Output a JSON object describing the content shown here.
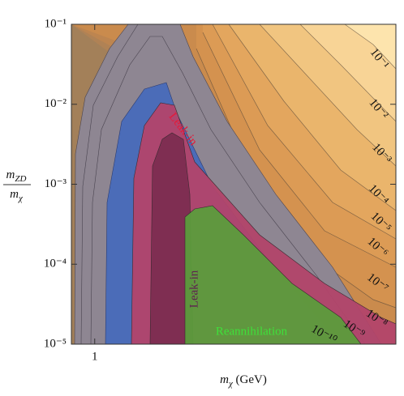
{
  "chart_data": {
    "type": "contour",
    "xlabel": {
      "symbol": "m",
      "sub": "χ",
      "unit": " (GeV)"
    },
    "ylabel": {
      "numerator": "m",
      "numerator_sub": "ZD",
      "denominator": "m",
      "denominator_sub": "χ"
    },
    "xscale": "log",
    "yscale": "log",
    "xlim": [
      0.7,
      100
    ],
    "ylim": [
      1e-05,
      0.1
    ],
    "xticks": [
      1
    ],
    "yticks": [
      {
        "value": 1e-05,
        "label": "10⁻⁵"
      },
      {
        "value": 0.0001,
        "label": "10⁻⁴"
      },
      {
        "value": 0.001,
        "label": "10⁻³"
      },
      {
        "value": 0.01,
        "label": "10⁻²"
      },
      {
        "value": 0.1,
        "label": "10⁻¹"
      }
    ],
    "background": "#fde4ad",
    "levels": [
      {
        "value": 0.1,
        "label": "10⁻¹",
        "color": "#f8d496"
      },
      {
        "value": 0.01,
        "label": "10⁻²",
        "color": "#f1c580"
      },
      {
        "value": 0.001,
        "label": "10⁻³",
        "color": "#eab56c"
      },
      {
        "value": 0.0001,
        "label": "10⁻⁴",
        "color": "#e3a65e"
      },
      {
        "value": 1e-05,
        "label": "10⁻⁵",
        "color": "#dc9b55"
      },
      {
        "value": 1e-06,
        "label": "10⁻⁶",
        "color": "#d4924f"
      },
      {
        "value": 1e-07,
        "label": "10⁻⁷",
        "color": "#ca8b4d"
      },
      {
        "value": 1e-08,
        "label": "10⁻⁸",
        "color": "#bd8550"
      },
      {
        "value": 1e-09,
        "label": "10⁻⁹",
        "color": "#b08255"
      },
      {
        "value": 1e-10,
        "label": "10⁻¹⁰",
        "color": "#a38059"
      }
    ],
    "regions": [
      {
        "label": "Leak-in",
        "fill": "#b2446a",
        "text_color": "#e41a3a"
      },
      {
        "label": "Leak-in",
        "fill": "#7c2d50",
        "text_color": "#5e2050"
      },
      {
        "label": "Reannihilation",
        "fill": "#5c9c3c",
        "text_color": "#3ee03a"
      }
    ]
  }
}
